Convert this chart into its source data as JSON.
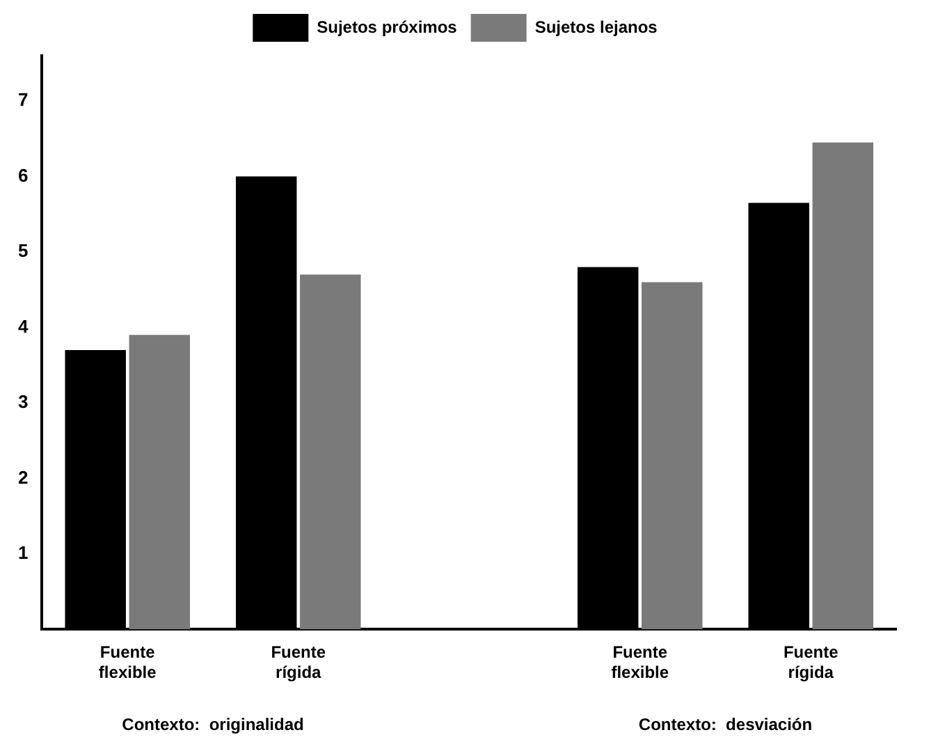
{
  "chart_data": {
    "type": "bar",
    "categories": [
      "Fuente flexible",
      "Fuente rígida",
      null,
      "Fuente flexible",
      "Fuente rígida"
    ],
    "series": [
      {
        "name": "Sujetos próximos",
        "color": "#000000",
        "values": [
          3.7,
          6.0,
          null,
          4.8,
          5.65
        ]
      },
      {
        "name": "Sujetos lejanos",
        "color": "#7a7a7a",
        "values": [
          3.9,
          4.7,
          null,
          4.6,
          6.45
        ]
      }
    ],
    "ylim": [
      0,
      7.6
    ],
    "yticks": [
      1,
      2,
      3,
      4,
      5,
      6,
      7
    ],
    "grid": false,
    "legend": "top",
    "annotations": [
      "Contexto:  originalidad",
      "Contexto:  desviación"
    ]
  }
}
